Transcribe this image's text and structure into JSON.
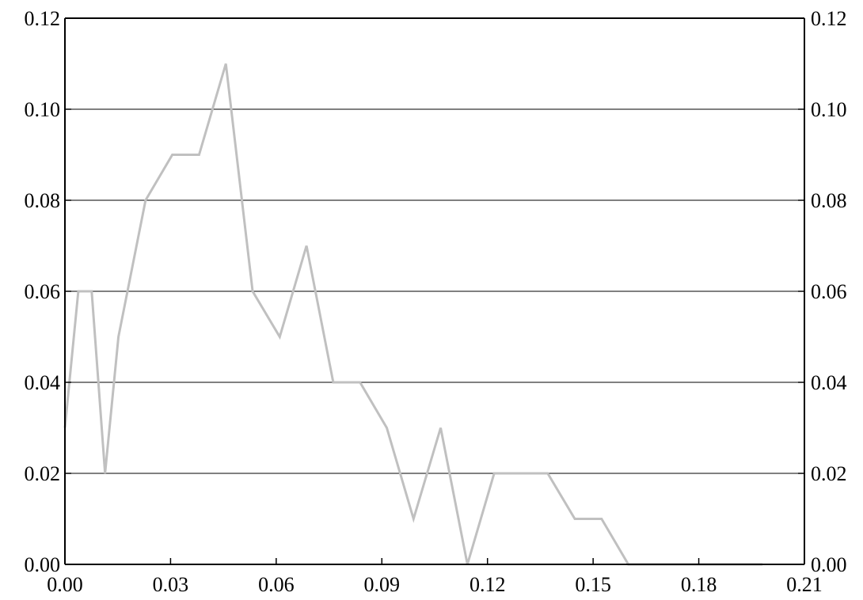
{
  "chart_data": {
    "type": "line",
    "title": "",
    "xlabel": "",
    "ylabel": "",
    "xlim": [
      0,
      0.21
    ],
    "ylim": [
      0,
      0.12
    ],
    "x_ticks": [
      "0.00",
      "0.03",
      "0.06",
      "0.09",
      "0.12",
      "0.15",
      "0.18",
      "0.21"
    ],
    "y_ticks": [
      "0.00",
      "0.02",
      "0.04",
      "0.06",
      "0.08",
      "0.10",
      "0.12"
    ],
    "y_ticks_right": [
      "0.00",
      "0.02",
      "0.04",
      "0.06",
      "0.08",
      "0.10",
      "0.12"
    ],
    "grid": "horizontal",
    "legend": "none",
    "line_color": "#c0c0c0",
    "series": [
      {
        "x": [
          0.0,
          0.0038,
          0.0076,
          0.0114,
          0.0152,
          0.0229,
          0.0305,
          0.0381,
          0.0457,
          0.0533,
          0.061,
          0.0686,
          0.0762,
          0.0838,
          0.0914,
          0.099,
          0.1067,
          0.1143,
          0.1219,
          0.1295,
          0.1371,
          0.1448,
          0.1524,
          0.16,
          0.1676,
          0.1752,
          0.1829,
          0.1905,
          0.1981
        ],
        "values": [
          0.03,
          0.06,
          0.06,
          0.02,
          0.05,
          0.08,
          0.09,
          0.09,
          0.11,
          0.06,
          0.05,
          0.07,
          0.04,
          0.04,
          0.03,
          0.01,
          0.03,
          0.0,
          0.02,
          0.02,
          0.02,
          0.01,
          0.01,
          0.0,
          0.0,
          0.0,
          0.0,
          0.0,
          0.0
        ]
      }
    ]
  }
}
